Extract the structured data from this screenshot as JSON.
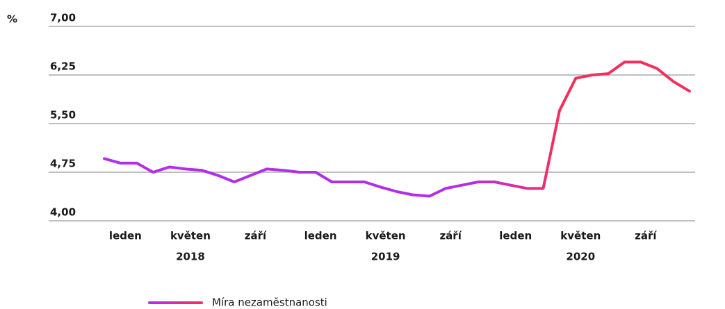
{
  "chart_data": {
    "type": "line",
    "y_unit": "%",
    "categories": [
      null,
      "leden",
      null,
      null,
      null,
      "květen",
      null,
      null,
      null,
      "září",
      null,
      null,
      null,
      "leden",
      null,
      null,
      null,
      "květen",
      null,
      null,
      null,
      "září",
      null,
      null,
      null,
      "leden",
      null,
      null,
      null,
      "květen",
      null,
      null,
      null,
      "září",
      null,
      null,
      null
    ],
    "year_labels": [
      null,
      null,
      null,
      null,
      null,
      "2018",
      null,
      null,
      null,
      null,
      null,
      null,
      null,
      null,
      null,
      null,
      null,
      "2019",
      null,
      null,
      null,
      null,
      null,
      null,
      null,
      null,
      null,
      null,
      null,
      "2020",
      null,
      null,
      null,
      null,
      null,
      null,
      null
    ],
    "series": [
      {
        "name": "Míra nezaměstnanosti",
        "color": [
          "#b22fe8",
          "#f3305c"
        ],
        "values": [
          4.96,
          4.89,
          4.89,
          4.75,
          4.83,
          4.8,
          4.78,
          4.7,
          4.6,
          4.7,
          4.8,
          4.78,
          4.75,
          4.75,
          4.6,
          4.6,
          4.6,
          4.52,
          4.45,
          4.4,
          4.38,
          4.5,
          4.55,
          4.6,
          4.6,
          4.55,
          4.5,
          4.5,
          5.7,
          6.2,
          6.25,
          6.27,
          6.45,
          6.45,
          6.35,
          6.15,
          6.0
        ]
      }
    ],
    "ylim": [
      4.0,
      7.0
    ],
    "yticks": [
      {
        "value": 4.0,
        "label": "4,00"
      },
      {
        "value": 4.75,
        "label": "4,75"
      },
      {
        "value": 5.5,
        "label": "5,50"
      },
      {
        "value": 6.25,
        "label": "6,25"
      },
      {
        "value": 7.0,
        "label": "7,00"
      }
    ],
    "grid": true,
    "legend": "bottom-left"
  }
}
